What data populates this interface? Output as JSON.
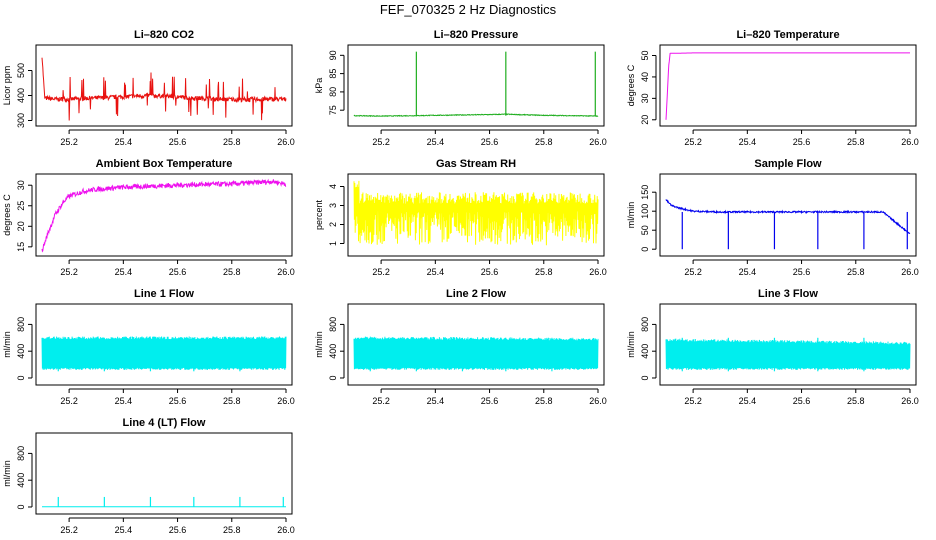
{
  "page": {
    "title": "FEF_070325  2 Hz Diagnostics"
  },
  "chart_data": [
    {
      "id": "co2",
      "type": "line",
      "title": "Li–820 CO2",
      "ylabel": "Licor ppm",
      "color": "#e8110f",
      "xlim": [
        25.1,
        26.0
      ],
      "ylim": [
        290,
        590
      ],
      "xticks": [
        25.2,
        25.4,
        25.6,
        25.8,
        26.0
      ],
      "yticks": [
        300,
        400,
        500
      ],
      "series": [
        {
          "x": [
            25.1,
            25.11,
            25.15,
            25.2,
            25.25,
            25.3,
            25.35,
            25.4,
            25.45,
            25.5,
            25.55,
            25.6,
            25.65,
            25.7,
            25.75,
            25.8,
            25.85,
            25.9,
            25.95,
            26.0
          ],
          "values": [
            560,
            390,
            385,
            385,
            388,
            390,
            392,
            395,
            398,
            400,
            398,
            395,
            390,
            388,
            385,
            385,
            383,
            385,
            385,
            385
          ]
        }
      ]
    },
    {
      "id": "pressure",
      "type": "line",
      "title": "Li–820 Pressure",
      "ylabel": "kPa",
      "color": "#1fae1f",
      "xlim": [
        25.1,
        26.0
      ],
      "ylim": [
        71.5,
        92
      ],
      "xticks": [
        25.2,
        25.4,
        25.6,
        25.8,
        26.0
      ],
      "yticks": [
        75,
        80,
        85,
        90
      ],
      "series": [
        {
          "x": [
            25.1,
            25.2,
            25.33,
            25.4,
            25.5,
            25.6,
            25.66,
            25.7,
            25.8,
            25.9,
            25.99,
            26.0
          ],
          "values": [
            73.5,
            73.4,
            73.5,
            73.6,
            73.7,
            73.8,
            73.9,
            73.8,
            73.6,
            73.5,
            73.4,
            73.4
          ]
        }
      ]
    },
    {
      "id": "temp",
      "type": "line",
      "title": "Li–820 Temperature",
      "ylabel": "degrees C",
      "color": "#ee11ee",
      "xlim": [
        25.1,
        26.0
      ],
      "ylim": [
        18.5,
        53.5
      ],
      "xticks": [
        25.2,
        25.4,
        25.6,
        25.8,
        26.0
      ],
      "yticks": [
        20,
        30,
        40,
        50
      ],
      "series": [
        {
          "x": [
            25.1,
            25.105,
            25.11,
            25.115,
            25.2,
            25.4,
            25.6,
            25.8,
            26.0
          ],
          "values": [
            20,
            32,
            45,
            51,
            51.2,
            51.2,
            51.2,
            51.2,
            51.2
          ]
        }
      ]
    },
    {
      "id": "ambient",
      "type": "line",
      "title": "Ambient Box Temperature",
      "ylabel": "degrees C",
      "color": "#ee11ee",
      "xlim": [
        25.1,
        26.0
      ],
      "ylim": [
        13.5,
        32
      ],
      "xticks": [
        25.2,
        25.4,
        25.6,
        25.8,
        26.0
      ],
      "yticks": [
        15,
        20,
        25,
        30
      ],
      "series": [
        {
          "x": [
            25.1,
            25.12,
            25.15,
            25.18,
            25.2,
            25.25,
            25.3,
            25.4,
            25.5,
            25.6,
            25.7,
            25.8,
            25.9,
            25.95,
            26.0
          ],
          "values": [
            14,
            18,
            23,
            26,
            27.3,
            28.5,
            29,
            29.5,
            29.8,
            30,
            30.2,
            30.3,
            30.7,
            30.9,
            30.3
          ]
        }
      ]
    },
    {
      "id": "rh",
      "type": "line",
      "title": "Gas Stream RH",
      "ylabel": "percent",
      "color": "#ffff00",
      "xlim": [
        25.1,
        26.0
      ],
      "ylim": [
        0.5,
        4.5
      ],
      "xticks": [
        25.2,
        25.4,
        25.6,
        25.8,
        26.0
      ],
      "yticks": [
        1,
        2,
        3,
        4
      ],
      "series": [
        {
          "x": [
            25.1,
            25.12,
            25.2,
            25.4,
            25.6,
            25.8,
            26.0
          ],
          "values": [
            4.3,
            3.8,
            3.5,
            3.4,
            3.4,
            3.4,
            3.4
          ]
        }
      ]
    },
    {
      "id": "sample",
      "type": "line",
      "title": "Sample Flow",
      "ylabel": "ml/min",
      "color": "#0000ee",
      "xlim": [
        25.1,
        26.0
      ],
      "ylim": [
        -10,
        190
      ],
      "xticks": [
        25.2,
        25.4,
        25.6,
        25.8,
        26.0
      ],
      "yticks": [
        0,
        50,
        100,
        150
      ],
      "series": [
        {
          "x": [
            25.1,
            25.12,
            25.15,
            25.2,
            25.3,
            25.4,
            25.5,
            25.6,
            25.7,
            25.8,
            25.9,
            26.0
          ],
          "values": [
            130,
            115,
            108,
            100,
            98,
            98,
            98,
            98,
            98,
            98,
            98,
            40
          ]
        }
      ]
    },
    {
      "id": "line1",
      "type": "line",
      "title": "Line 1 Flow",
      "ylabel": "ml/min",
      "color": "#00eeee",
      "xlim": [
        25.1,
        26.0
      ],
      "ylim": [
        -60,
        1060
      ],
      "xticks": [
        25.2,
        25.4,
        25.6,
        25.8,
        26.0
      ],
      "yticks": [
        0,
        400,
        800
      ],
      "series": [
        {
          "x": [
            25.1,
            26.0
          ],
          "values": [
            600,
            600
          ]
        }
      ]
    },
    {
      "id": "line2",
      "type": "line",
      "title": "Line 2 Flow",
      "ylabel": "ml/min",
      "color": "#00eeee",
      "xlim": [
        25.1,
        26.0
      ],
      "ylim": [
        -60,
        1060
      ],
      "xticks": [
        25.2,
        25.4,
        25.6,
        25.8,
        26.0
      ],
      "yticks": [
        0,
        400,
        800
      ],
      "series": [
        {
          "x": [
            25.1,
            26.0
          ],
          "values": [
            600,
            580
          ]
        }
      ]
    },
    {
      "id": "line3",
      "type": "line",
      "title": "Line 3 Flow",
      "ylabel": "ml/min",
      "color": "#00eeee",
      "xlim": [
        25.1,
        26.0
      ],
      "ylim": [
        -60,
        1060
      ],
      "xticks": [
        25.2,
        25.4,
        25.6,
        25.8,
        26.0
      ],
      "yticks": [
        0,
        400,
        800
      ],
      "series": [
        {
          "x": [
            25.1,
            26.0
          ],
          "values": [
            570,
            520
          ]
        }
      ]
    },
    {
      "id": "line4",
      "type": "line",
      "title": "Line 4 (LT) Flow",
      "ylabel": "ml/min",
      "color": "#00eeee",
      "xlim": [
        25.1,
        26.0
      ],
      "ylim": [
        -60,
        1060
      ],
      "xticks": [
        25.2,
        25.4,
        25.6,
        25.8,
        26.0
      ],
      "yticks": [
        0,
        400,
        800
      ],
      "series": [
        {
          "x": [
            25.1,
            25.16,
            25.33,
            25.5,
            25.66,
            25.83,
            26.0
          ],
          "values": [
            2,
            2,
            2,
            2,
            2,
            2,
            2
          ]
        }
      ]
    }
  ]
}
